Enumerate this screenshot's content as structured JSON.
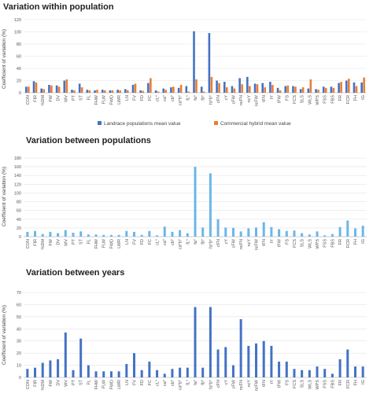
{
  "chart_data": [
    {
      "type": "bar",
      "title": "Variation within population",
      "ylabel": "Coefficient of variation (%)",
      "xlabel": "",
      "ylim": [
        0,
        120
      ],
      "yticks": [
        0,
        20,
        40,
        60,
        80,
        100,
        120
      ],
      "grid": true,
      "legend_position": "bottom",
      "categories": [
        "CON",
        "FIR",
        "%DM",
        "FW",
        "DV",
        "WV",
        "PT",
        "ST",
        "FL",
        "FHW",
        "FLW",
        "FWD",
        "LWR",
        "LN",
        "FV",
        "FD",
        "FC",
        "cL*",
        "ca*",
        "cb*",
        "ca*b*",
        "fL*",
        "fa*",
        "fb*",
        "fa*b*",
        "cFN",
        "cY",
        "cFW",
        "ncFN",
        "ncY",
        "ncFW",
        "tFN",
        "tY",
        "tFW",
        "FS",
        "FCS",
        "SLS",
        "WLS",
        "WPS",
        "FSS",
        "FBS",
        "FR",
        "FCR",
        "FH",
        "IG"
      ],
      "series": [
        {
          "name": "Landrace populations mean value",
          "color": "#4472c4",
          "values": [
            10,
            19,
            7,
            13,
            12,
            20,
            5,
            15,
            5,
            4,
            5,
            4,
            5,
            6,
            13,
            4,
            16,
            4,
            7,
            9,
            8,
            11,
            101,
            10,
            98,
            20,
            18,
            11,
            24,
            26,
            15,
            16,
            18,
            8,
            11,
            11,
            6,
            7,
            6,
            10,
            10,
            16,
            20,
            17,
            17
          ]
        },
        {
          "name": "Commercial hybrid mean value",
          "color": "#ed7d31",
          "values": [
            10,
            17,
            6,
            12,
            10,
            22,
            4,
            9,
            4,
            5,
            4,
            4,
            4,
            4,
            15,
            3,
            24,
            2,
            5,
            10,
            13,
            2,
            22,
            2,
            26,
            16,
            9,
            7,
            14,
            11,
            14,
            9,
            13,
            4,
            12,
            10,
            9,
            22,
            5,
            8,
            8,
            18,
            23,
            11,
            25
          ]
        }
      ]
    },
    {
      "type": "bar",
      "title": "Variation between populations",
      "ylabel": "Coefficient of variation (%)",
      "xlabel": "",
      "ylim": [
        0,
        180
      ],
      "yticks": [
        0,
        20,
        40,
        60,
        80,
        100,
        120,
        140,
        160,
        180
      ],
      "grid": true,
      "categories": [
        "CON",
        "FIR",
        "%DM",
        "FW",
        "DV",
        "WV",
        "PT",
        "ST",
        "FL",
        "FHW",
        "FLW",
        "FWD",
        "LWR",
        "LN",
        "FV",
        "FD",
        "FC",
        "cL*",
        "ca*",
        "cb*",
        "ca*b*",
        "fL*",
        "fa*",
        "fb*",
        "fa*b*",
        "cFN",
        "cY",
        "cFW",
        "ncFN",
        "ncY",
        "ncFW",
        "tFN",
        "tY",
        "tFW",
        "FS",
        "FCS",
        "SLS",
        "WLS",
        "WPS",
        "FSS",
        "FBS",
        "FR",
        "FCR",
        "FH",
        "IG"
      ],
      "series": [
        {
          "color": "#6cb6e8",
          "values": [
            11,
            13,
            6,
            11,
            8,
            15,
            9,
            12,
            5,
            5,
            4,
            4,
            4,
            13,
            11,
            4,
            13,
            3,
            23,
            11,
            15,
            8,
            160,
            21,
            145,
            40,
            21,
            20,
            12,
            19,
            21,
            33,
            22,
            17,
            13,
            14,
            8,
            5,
            12,
            3,
            6,
            22,
            37,
            19,
            25
          ]
        }
      ]
    },
    {
      "type": "bar",
      "title": "Variation between years",
      "ylabel": "Coefficient of variation (%)",
      "xlabel": "",
      "ylim": [
        0,
        70
      ],
      "yticks": [
        0,
        10,
        20,
        30,
        40,
        50,
        60,
        70
      ],
      "grid": true,
      "categories": [
        "CON",
        "FIR",
        "%DM",
        "FW",
        "DV",
        "WV",
        "PT",
        "ST",
        "FL",
        "FHW",
        "FLW",
        "FWD",
        "LWR",
        "LN",
        "FV",
        "FD",
        "FC",
        "cL*",
        "ca*",
        "cb*",
        "ca*b*",
        "fL*",
        "fa*",
        "fb*",
        "fa*b*",
        "cFN",
        "cY",
        "cFW",
        "ncFN",
        "ncY",
        "ncFW",
        "tFN",
        "tY",
        "tFW",
        "FS",
        "FCS",
        "SLS",
        "WLS",
        "WPS",
        "FSS",
        "FBS",
        "FR",
        "FCR",
        "FH",
        "IG"
      ],
      "series": [
        {
          "color": "#4472c4",
          "values": [
            7,
            8,
            12,
            14,
            15,
            37,
            6,
            32,
            10,
            5,
            5,
            5,
            5,
            11,
            20,
            6,
            13,
            6,
            3,
            7,
            8,
            8,
            58,
            8,
            58,
            23,
            25,
            10,
            48,
            26,
            28,
            30,
            26,
            13,
            13,
            7,
            6,
            6,
            9,
            7,
            3,
            15,
            23,
            9,
            9
          ]
        }
      ]
    }
  ]
}
